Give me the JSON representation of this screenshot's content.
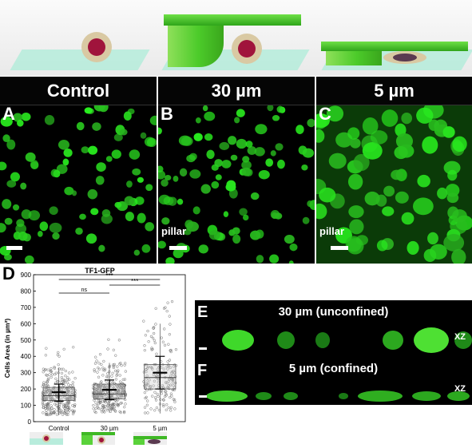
{
  "panels": [
    {
      "letter": "A",
      "title": "Control",
      "tag": ""
    },
    {
      "letter": "B",
      "title": "30 µm",
      "tag": "pillar"
    },
    {
      "letter": "C",
      "title": "5 µm",
      "tag": "pillar"
    }
  ],
  "colors": {
    "gfp": "#33d61f",
    "pillar": "#4ccb2a",
    "floor": "#b8ecdc",
    "cell_inner": "#a0143c",
    "cell_outer": "#d9c9a3"
  },
  "panel_d": {
    "letter": "D"
  },
  "chart_data": {
    "type": "box",
    "title": "TF1-GFP",
    "xlabel": "",
    "ylabel": "Cells Area (in µm²)",
    "ylim": [
      0,
      900
    ],
    "yticks": [
      0,
      100,
      200,
      300,
      400,
      500,
      600,
      700,
      800,
      900
    ],
    "categories": [
      "Control",
      "30 µm",
      "5 µm"
    ],
    "series": [
      {
        "name": "Control",
        "q1": 130,
        "median": 160,
        "q3": 210,
        "whisker_low": 40,
        "whisker_high": 330,
        "mean": 180,
        "sd_low": 125,
        "sd_high": 230
      },
      {
        "name": "30 µm",
        "q1": 140,
        "median": 170,
        "q3": 230,
        "whisker_low": 55,
        "whisker_high": 360,
        "mean": 195,
        "sd_low": 135,
        "sd_high": 255
      },
      {
        "name": "5 µm",
        "q1": 200,
        "median": 270,
        "q3": 350,
        "whisker_low": 50,
        "whisker_high": 600,
        "mean": 300,
        "sd_low": 200,
        "sd_high": 400
      }
    ],
    "annotations": [
      {
        "from": "Control",
        "to": "30 µm",
        "label": "ns"
      },
      {
        "from": "30 µm",
        "to": "5 µm",
        "label": "***"
      },
      {
        "from": "Control",
        "to": "5 µm",
        "label": "***"
      }
    ]
  },
  "strips": [
    {
      "letter": "E",
      "title": "30 µm (unconfined)",
      "xz": "XZ"
    },
    {
      "letter": "F",
      "title": "5 µm (confined)",
      "xz": "XZ"
    }
  ]
}
